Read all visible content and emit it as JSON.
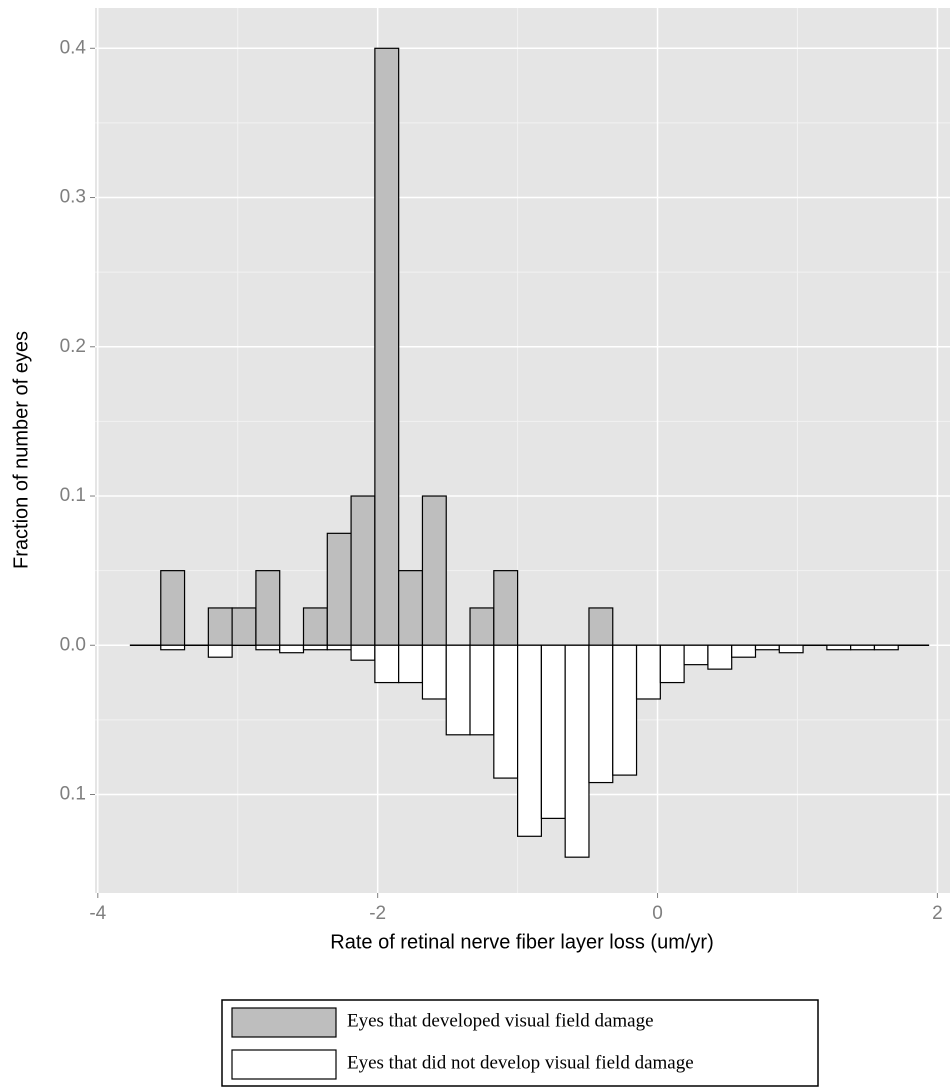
{
  "chart_data": {
    "type": "mirrored_histogram",
    "x_label": "Rate of retinal nerve fiber layer loss (um/yr)",
    "y_label": "Fraction of number of eyes",
    "bins": [
      -3.55,
      -3.38,
      -3.21,
      -3.04,
      -2.87,
      -2.7,
      -2.53,
      -2.36,
      -2.19,
      -2.02,
      -1.85,
      -1.68,
      -1.51,
      -1.34,
      -1.17,
      -1.0,
      -0.83,
      -0.66,
      -0.49,
      -0.32,
      -0.15,
      0.02,
      0.19,
      0.36,
      0.53,
      0.7,
      0.87,
      1.04,
      1.21,
      1.38,
      1.55,
      1.72
    ],
    "series": [
      {
        "name": "Eyes that developed visual field damage",
        "color": "#bebebe",
        "values": [
          0.05,
          0,
          0.025,
          0.025,
          0.05,
          0,
          0.025,
          0.075,
          0.1,
          0.4,
          0.05,
          0.1,
          0,
          0.025,
          0.05,
          0,
          0,
          0,
          0.025,
          0,
          0,
          0,
          0,
          0,
          0,
          0,
          0,
          0,
          0,
          0,
          0
        ]
      },
      {
        "name": "Eyes that did not develop visual field damage",
        "color": "#ffffff",
        "values": [
          -0.003,
          0,
          -0.008,
          0,
          -0.003,
          -0.005,
          -0.003,
          -0.003,
          -0.01,
          -0.025,
          -0.025,
          -0.036,
          -0.06,
          -0.06,
          -0.089,
          -0.128,
          -0.116,
          -0.142,
          -0.092,
          -0.087,
          -0.036,
          -0.025,
          -0.013,
          -0.016,
          -0.008,
          -0.003,
          -0.005,
          0,
          -0.003,
          -0.003,
          -0.003
        ]
      }
    ],
    "xlim": [
      -4.02,
      2.09
    ],
    "xticks": [
      -4,
      -2,
      0,
      2
    ],
    "ylim": [
      -0.166,
      0.427
    ],
    "yticks": [
      {
        "value": -0.1,
        "label": "0.1"
      },
      {
        "value": 0,
        "label": "0.0"
      },
      0.1,
      0.2,
      0.3,
      0.4
    ],
    "grid": true,
    "legend": "bottom"
  }
}
